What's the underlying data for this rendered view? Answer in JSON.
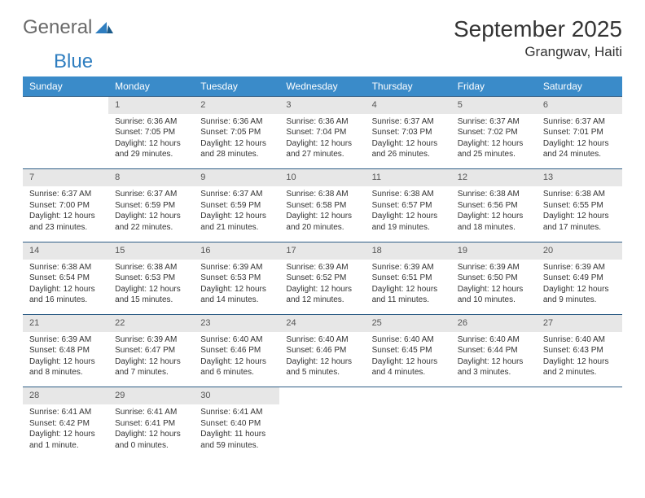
{
  "brand": {
    "part1": "General",
    "part2": "Blue"
  },
  "title": "September 2025",
  "location": "Grangwav, Haiti",
  "colors": {
    "header_bg": "#3a8bc9",
    "header_text": "#ffffff",
    "daynum_bg": "#e7e7e7",
    "border": "#2f5e86",
    "logo_gray": "#6a6a6a",
    "logo_blue": "#2f7ec0"
  },
  "weekdays": [
    "Sunday",
    "Monday",
    "Tuesday",
    "Wednesday",
    "Thursday",
    "Friday",
    "Saturday"
  ],
  "weeks": [
    [
      null,
      {
        "n": "1",
        "sr": "Sunrise: 6:36 AM",
        "ss": "Sunset: 7:05 PM",
        "dl": "Daylight: 12 hours and 29 minutes."
      },
      {
        "n": "2",
        "sr": "Sunrise: 6:36 AM",
        "ss": "Sunset: 7:05 PM",
        "dl": "Daylight: 12 hours and 28 minutes."
      },
      {
        "n": "3",
        "sr": "Sunrise: 6:36 AM",
        "ss": "Sunset: 7:04 PM",
        "dl": "Daylight: 12 hours and 27 minutes."
      },
      {
        "n": "4",
        "sr": "Sunrise: 6:37 AM",
        "ss": "Sunset: 7:03 PM",
        "dl": "Daylight: 12 hours and 26 minutes."
      },
      {
        "n": "5",
        "sr": "Sunrise: 6:37 AM",
        "ss": "Sunset: 7:02 PM",
        "dl": "Daylight: 12 hours and 25 minutes."
      },
      {
        "n": "6",
        "sr": "Sunrise: 6:37 AM",
        "ss": "Sunset: 7:01 PM",
        "dl": "Daylight: 12 hours and 24 minutes."
      }
    ],
    [
      {
        "n": "7",
        "sr": "Sunrise: 6:37 AM",
        "ss": "Sunset: 7:00 PM",
        "dl": "Daylight: 12 hours and 23 minutes."
      },
      {
        "n": "8",
        "sr": "Sunrise: 6:37 AM",
        "ss": "Sunset: 6:59 PM",
        "dl": "Daylight: 12 hours and 22 minutes."
      },
      {
        "n": "9",
        "sr": "Sunrise: 6:37 AM",
        "ss": "Sunset: 6:59 PM",
        "dl": "Daylight: 12 hours and 21 minutes."
      },
      {
        "n": "10",
        "sr": "Sunrise: 6:38 AM",
        "ss": "Sunset: 6:58 PM",
        "dl": "Daylight: 12 hours and 20 minutes."
      },
      {
        "n": "11",
        "sr": "Sunrise: 6:38 AM",
        "ss": "Sunset: 6:57 PM",
        "dl": "Daylight: 12 hours and 19 minutes."
      },
      {
        "n": "12",
        "sr": "Sunrise: 6:38 AM",
        "ss": "Sunset: 6:56 PM",
        "dl": "Daylight: 12 hours and 18 minutes."
      },
      {
        "n": "13",
        "sr": "Sunrise: 6:38 AM",
        "ss": "Sunset: 6:55 PM",
        "dl": "Daylight: 12 hours and 17 minutes."
      }
    ],
    [
      {
        "n": "14",
        "sr": "Sunrise: 6:38 AM",
        "ss": "Sunset: 6:54 PM",
        "dl": "Daylight: 12 hours and 16 minutes."
      },
      {
        "n": "15",
        "sr": "Sunrise: 6:38 AM",
        "ss": "Sunset: 6:53 PM",
        "dl": "Daylight: 12 hours and 15 minutes."
      },
      {
        "n": "16",
        "sr": "Sunrise: 6:39 AM",
        "ss": "Sunset: 6:53 PM",
        "dl": "Daylight: 12 hours and 14 minutes."
      },
      {
        "n": "17",
        "sr": "Sunrise: 6:39 AM",
        "ss": "Sunset: 6:52 PM",
        "dl": "Daylight: 12 hours and 12 minutes."
      },
      {
        "n": "18",
        "sr": "Sunrise: 6:39 AM",
        "ss": "Sunset: 6:51 PM",
        "dl": "Daylight: 12 hours and 11 minutes."
      },
      {
        "n": "19",
        "sr": "Sunrise: 6:39 AM",
        "ss": "Sunset: 6:50 PM",
        "dl": "Daylight: 12 hours and 10 minutes."
      },
      {
        "n": "20",
        "sr": "Sunrise: 6:39 AM",
        "ss": "Sunset: 6:49 PM",
        "dl": "Daylight: 12 hours and 9 minutes."
      }
    ],
    [
      {
        "n": "21",
        "sr": "Sunrise: 6:39 AM",
        "ss": "Sunset: 6:48 PM",
        "dl": "Daylight: 12 hours and 8 minutes."
      },
      {
        "n": "22",
        "sr": "Sunrise: 6:39 AM",
        "ss": "Sunset: 6:47 PM",
        "dl": "Daylight: 12 hours and 7 minutes."
      },
      {
        "n": "23",
        "sr": "Sunrise: 6:40 AM",
        "ss": "Sunset: 6:46 PM",
        "dl": "Daylight: 12 hours and 6 minutes."
      },
      {
        "n": "24",
        "sr": "Sunrise: 6:40 AM",
        "ss": "Sunset: 6:46 PM",
        "dl": "Daylight: 12 hours and 5 minutes."
      },
      {
        "n": "25",
        "sr": "Sunrise: 6:40 AM",
        "ss": "Sunset: 6:45 PM",
        "dl": "Daylight: 12 hours and 4 minutes."
      },
      {
        "n": "26",
        "sr": "Sunrise: 6:40 AM",
        "ss": "Sunset: 6:44 PM",
        "dl": "Daylight: 12 hours and 3 minutes."
      },
      {
        "n": "27",
        "sr": "Sunrise: 6:40 AM",
        "ss": "Sunset: 6:43 PM",
        "dl": "Daylight: 12 hours and 2 minutes."
      }
    ],
    [
      {
        "n": "28",
        "sr": "Sunrise: 6:41 AM",
        "ss": "Sunset: 6:42 PM",
        "dl": "Daylight: 12 hours and 1 minute."
      },
      {
        "n": "29",
        "sr": "Sunrise: 6:41 AM",
        "ss": "Sunset: 6:41 PM",
        "dl": "Daylight: 12 hours and 0 minutes."
      },
      {
        "n": "30",
        "sr": "Sunrise: 6:41 AM",
        "ss": "Sunset: 6:40 PM",
        "dl": "Daylight: 11 hours and 59 minutes."
      },
      null,
      null,
      null,
      null
    ]
  ]
}
